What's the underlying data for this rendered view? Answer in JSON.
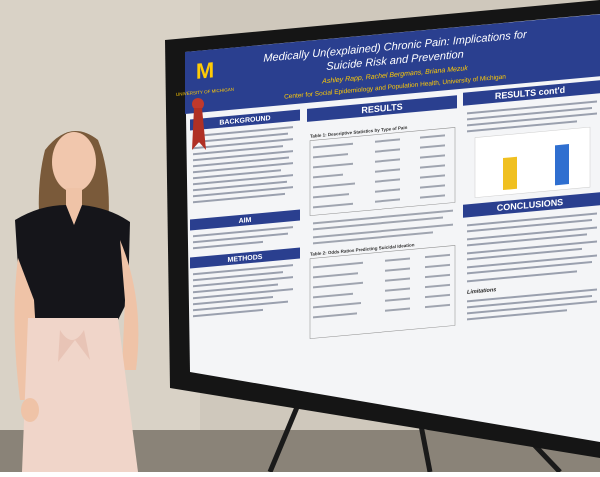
{
  "poster": {
    "logo": {
      "letter": "M",
      "name": "UNIVERSITY OF MICHIGAN"
    },
    "title_lines": [
      "Medically Un(explained) Chronic Pain: Implications for",
      "Suicide Risk and Prevention"
    ],
    "authors": "Ashley Rapp, Rachel Bergmans, Briana Mezuk",
    "affiliation": "Center for Social Epidemiology and Population Health, University of Michigan",
    "sections": {
      "background": "BACKGROUND",
      "aim": "AIM",
      "methods": "METHODS",
      "results": "RESULTS",
      "results_contd": "RESULTS cont'd",
      "conclusions": "CONCLUSIONS"
    },
    "tables": [
      "Table 1: Descriptive Statistics by Type of Pain",
      "Table 2: Odds Ratios Predicting Suicidal Ideation"
    ],
    "subheading": "Limitations"
  }
}
